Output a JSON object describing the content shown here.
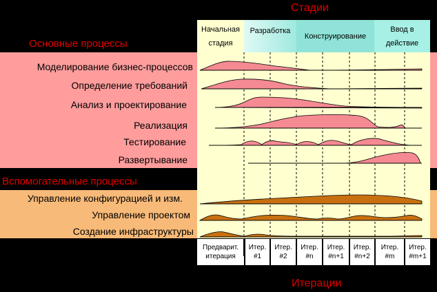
{
  "titles": {
    "stages": "Стадии",
    "iterations": "Итерации",
    "core_processes": "Основные процессы",
    "support_processes": "Вспомогательные процессы"
  },
  "phases": [
    {
      "label": "Начальная\nстадия",
      "color": "#ffffcf"
    },
    {
      "label": "Разработка",
      "color": "#dffaf5"
    },
    {
      "label": "Конструирование",
      "color": "#8fe3d8"
    },
    {
      "label": "Ввод в\nдействие",
      "color": "#a6f0e6"
    }
  ],
  "core_processes": [
    "Моделирование бизнес-процессов",
    "Определение требований",
    "Анализ и проектирование",
    "Реализация",
    "Тестирование",
    "Развертывание"
  ],
  "support_processes": [
    "Управление конфигурацией и изм.",
    "Управление проектом",
    "Создание инфраструктуры"
  ],
  "iterations": [
    "Предварит.\nитерация",
    "Итер.\n#1",
    "Итер.\n#2",
    "Итер.\n#n",
    "Итер.\n#n+1",
    "Итер.\n#n+2",
    "Итер.\n#m",
    "Итер.\n#m+1"
  ],
  "colors": {
    "background": "#000000",
    "title_red": "#e10000",
    "core_band": "#ff9d9d",
    "support_band": "#f8ba78",
    "core_curve": "#f58a92",
    "support_curve": "#c87010",
    "grid_panel": "#ffffcf"
  }
}
